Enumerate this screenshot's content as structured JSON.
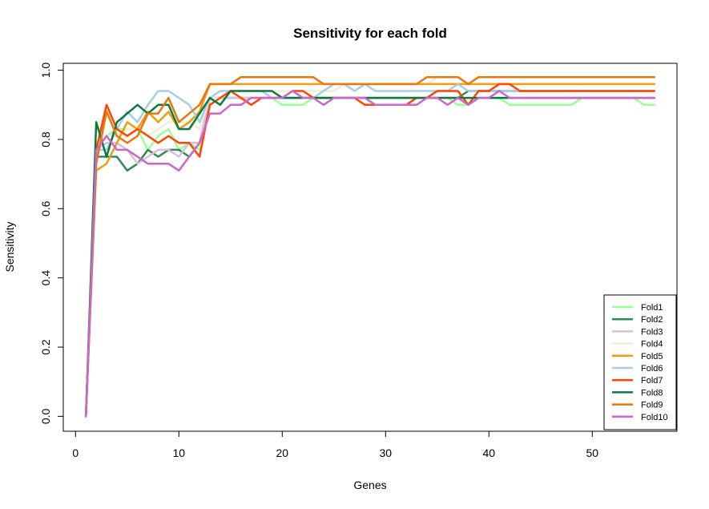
{
  "chart_data": {
    "type": "line",
    "title": "Sensitivity for each fold",
    "xlabel": "Genes",
    "ylabel": "Sensitivity",
    "xlim": [
      0,
      56
    ],
    "ylim": [
      0,
      1
    ],
    "xticks": [
      "0",
      "10",
      "20",
      "30",
      "40",
      "50"
    ],
    "yticks": [
      "0.0",
      "0.2",
      "0.4",
      "0.6",
      "0.8",
      "1.0"
    ],
    "legend_position": "bottom-right",
    "x": [
      1,
      2,
      3,
      4,
      5,
      6,
      7,
      8,
      9,
      10,
      11,
      12,
      13,
      14,
      15,
      16,
      17,
      18,
      19,
      20,
      21,
      22,
      23,
      24,
      25,
      26,
      27,
      28,
      29,
      30,
      31,
      32,
      33,
      34,
      35,
      36,
      37,
      38,
      39,
      40,
      41,
      42,
      43,
      44,
      45,
      46,
      47,
      48,
      49,
      50,
      51,
      52,
      53,
      54,
      55,
      56
    ],
    "series": [
      {
        "name": "Fold1",
        "color": "#99ff99",
        "values": [
          0,
          0.79,
          0.81,
          0.83,
          0.83,
          0.83,
          0.77,
          0.81,
          0.83,
          0.77,
          0.79,
          0.77,
          0.92,
          0.92,
          0.92,
          0.92,
          0.92,
          0.92,
          0.92,
          0.9,
          0.9,
          0.9,
          0.92,
          0.92,
          0.92,
          0.92,
          0.92,
          0.92,
          0.92,
          0.92,
          0.92,
          0.92,
          0.92,
          0.92,
          0.92,
          0.92,
          0.9,
          0.9,
          0.92,
          0.92,
          0.92,
          0.9,
          0.9,
          0.9,
          0.9,
          0.9,
          0.9,
          0.9,
          0.92,
          0.92,
          0.92,
          0.92,
          0.92,
          0.92,
          0.9,
          0.9
        ]
      },
      {
        "name": "Fold2",
        "color": "#2e8b57",
        "values": [
          0,
          0.75,
          0.75,
          0.75,
          0.71,
          0.73,
          0.77,
          0.75,
          0.77,
          0.77,
          0.75,
          0.79,
          0.92,
          0.92,
          0.92,
          0.92,
          0.92,
          0.92,
          0.92,
          0.92,
          0.92,
          0.92,
          0.92,
          0.92,
          0.92,
          0.92,
          0.92,
          0.92,
          0.92,
          0.92,
          0.92,
          0.92,
          0.92,
          0.92,
          0.92,
          0.92,
          0.92,
          0.94,
          0.94,
          0.94,
          0.94,
          0.94,
          0.94,
          0.94,
          0.94,
          0.94,
          0.94,
          0.94,
          0.94,
          0.94,
          0.94,
          0.94,
          0.94,
          0.94,
          0.94,
          0.94
        ]
      },
      {
        "name": "Fold3",
        "color": "#d8bfd8",
        "values": [
          0,
          0.77,
          0.79,
          0.79,
          0.77,
          0.73,
          0.75,
          0.77,
          0.77,
          0.75,
          0.79,
          0.79,
          0.92,
          0.92,
          0.92,
          0.92,
          0.92,
          0.92,
          0.92,
          0.92,
          0.92,
          0.92,
          0.92,
          0.92,
          0.92,
          0.92,
          0.92,
          0.92,
          0.92,
          0.92,
          0.92,
          0.92,
          0.92,
          0.92,
          0.92,
          0.92,
          0.92,
          0.92,
          0.92,
          0.92,
          0.92,
          0.92,
          0.92,
          0.92,
          0.92,
          0.92,
          0.92,
          0.92,
          0.92,
          0.92,
          0.92,
          0.92,
          0.92,
          0.92,
          0.92,
          0.92
        ]
      },
      {
        "name": "Fold4",
        "color": "#eeeed5",
        "values": [
          0,
          0.79,
          0.81,
          0.81,
          0.83,
          0.83,
          0.81,
          0.83,
          0.85,
          0.85,
          0.85,
          0.83,
          0.92,
          0.92,
          0.94,
          0.94,
          0.94,
          0.94,
          0.94,
          0.94,
          0.94,
          0.94,
          0.94,
          0.94,
          0.94,
          0.96,
          0.96,
          0.96,
          0.96,
          0.96,
          0.96,
          0.96,
          0.96,
          0.96,
          0.98,
          0.98,
          0.98,
          0.96,
          0.96,
          0.96,
          0.96,
          0.96,
          0.96,
          0.96,
          0.96,
          0.96,
          0.96,
          0.96,
          0.96,
          0.96,
          0.96,
          0.96,
          0.96,
          0.96,
          0.96,
          0.96
        ]
      },
      {
        "name": "Fold5",
        "color": "#f39c12",
        "values": [
          0,
          0.71,
          0.73,
          0.79,
          0.85,
          0.83,
          0.88,
          0.85,
          0.88,
          0.83,
          0.85,
          0.88,
          0.96,
          0.96,
          0.96,
          0.96,
          0.96,
          0.96,
          0.96,
          0.96,
          0.96,
          0.96,
          0.96,
          0.96,
          0.96,
          0.96,
          0.96,
          0.96,
          0.96,
          0.96,
          0.96,
          0.96,
          0.96,
          0.96,
          0.96,
          0.96,
          0.96,
          0.96,
          0.96,
          0.96,
          0.96,
          0.96,
          0.96,
          0.96,
          0.96,
          0.96,
          0.96,
          0.96,
          0.96,
          0.96,
          0.96,
          0.96,
          0.96,
          0.96,
          0.96,
          0.96
        ]
      },
      {
        "name": "Fold6",
        "color": "#a6cee3",
        "values": [
          0,
          0.77,
          0.77,
          0.83,
          0.88,
          0.85,
          0.9,
          0.94,
          0.94,
          0.92,
          0.9,
          0.85,
          0.92,
          0.94,
          0.94,
          0.94,
          0.94,
          0.94,
          0.92,
          0.92,
          0.92,
          0.92,
          0.92,
          0.94,
          0.96,
          0.96,
          0.94,
          0.96,
          0.94,
          0.94,
          0.94,
          0.94,
          0.94,
          0.94,
          0.94,
          0.94,
          0.96,
          0.94,
          0.94,
          0.94,
          0.94,
          0.94,
          0.94,
          0.94,
          0.94,
          0.94,
          0.94,
          0.94,
          0.94,
          0.94,
          0.94,
          0.94,
          0.94,
          0.94,
          0.94,
          0.94
        ]
      },
      {
        "name": "Fold7",
        "color": "#ff4500",
        "values": [
          0,
          0.77,
          0.9,
          0.83,
          0.81,
          0.83,
          0.81,
          0.79,
          0.81,
          0.79,
          0.79,
          0.75,
          0.9,
          0.92,
          0.94,
          0.92,
          0.9,
          0.92,
          0.92,
          0.92,
          0.94,
          0.94,
          0.92,
          0.92,
          0.92,
          0.92,
          0.92,
          0.9,
          0.9,
          0.9,
          0.9,
          0.9,
          0.92,
          0.92,
          0.94,
          0.94,
          0.94,
          0.9,
          0.94,
          0.94,
          0.96,
          0.96,
          0.94,
          0.94,
          0.94,
          0.94,
          0.94,
          0.94,
          0.94,
          0.94,
          0.94,
          0.94,
          0.94,
          0.94,
          0.94,
          0.94
        ]
      },
      {
        "name": "Fold8",
        "color": "#0a7a3f",
        "values": [
          0,
          0.85,
          0.75,
          0.85,
          0.875,
          0.9,
          0.875,
          0.9,
          0.9,
          0.83,
          0.83,
          0.875,
          0.92,
          0.9,
          0.94,
          0.94,
          0.94,
          0.94,
          0.94,
          0.92,
          0.92,
          0.92,
          0.92,
          0.92,
          0.92,
          0.92,
          0.92,
          0.92,
          0.92,
          0.92,
          0.92,
          0.92,
          0.92,
          0.92,
          0.92,
          0.92,
          0.92,
          0.92,
          0.92,
          0.92,
          0.92,
          0.92,
          0.92,
          0.92,
          0.92,
          0.92,
          0.92,
          0.92,
          0.92,
          0.92,
          0.92,
          0.92,
          0.92,
          0.92,
          0.92,
          0.92
        ]
      },
      {
        "name": "Fold9",
        "color": "#e8770e",
        "values": [
          0,
          0.73,
          0.88,
          0.81,
          0.79,
          0.81,
          0.875,
          0.875,
          0.92,
          0.85,
          0.875,
          0.9,
          0.96,
          0.96,
          0.96,
          0.98,
          0.98,
          0.98,
          0.98,
          0.98,
          0.98,
          0.98,
          0.98,
          0.96,
          0.96,
          0.96,
          0.96,
          0.96,
          0.96,
          0.96,
          0.96,
          0.96,
          0.96,
          0.98,
          0.98,
          0.98,
          0.98,
          0.96,
          0.98,
          0.98,
          0.98,
          0.98,
          0.98,
          0.98,
          0.98,
          0.98,
          0.98,
          0.98,
          0.98,
          0.98,
          0.98,
          0.98,
          0.98,
          0.98,
          0.98,
          0.98
        ]
      },
      {
        "name": "Fold10",
        "color": "#cc66cc",
        "values": [
          0,
          0.77,
          0.81,
          0.77,
          0.77,
          0.75,
          0.73,
          0.73,
          0.73,
          0.71,
          0.75,
          0.79,
          0.875,
          0.875,
          0.9,
          0.9,
          0.92,
          0.92,
          0.92,
          0.92,
          0.94,
          0.92,
          0.92,
          0.9,
          0.92,
          0.92,
          0.92,
          0.92,
          0.9,
          0.9,
          0.9,
          0.9,
          0.9,
          0.92,
          0.92,
          0.9,
          0.92,
          0.9,
          0.92,
          0.92,
          0.94,
          0.92,
          0.92,
          0.92,
          0.92,
          0.92,
          0.92,
          0.92,
          0.92,
          0.92,
          0.92,
          0.92,
          0.92,
          0.92,
          0.92,
          0.92
        ]
      }
    ]
  }
}
